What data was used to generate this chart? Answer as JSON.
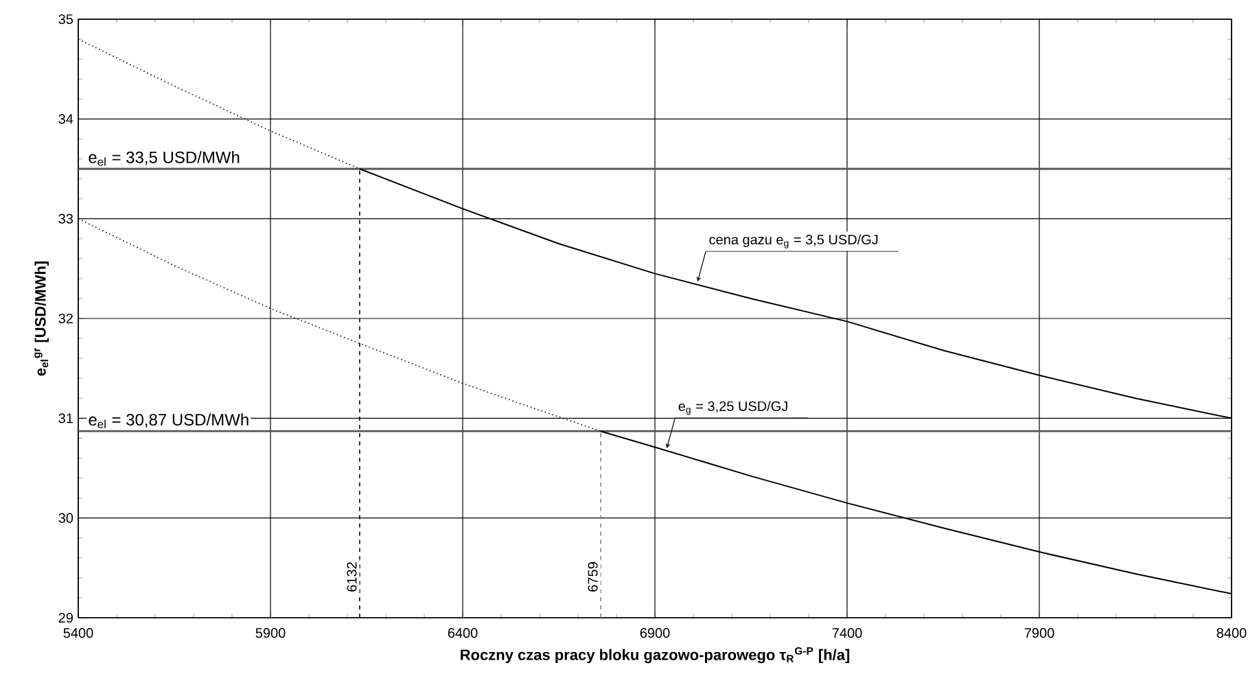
{
  "chart_data": {
    "type": "line",
    "xlabel": "Roczny czas pracy bloku gazowo-parowego τ$_{R}$$^{G-P}$  [h/a]",
    "ylabel": "e$_{el}$$^{gr}$  [USD/MWh]",
    "xlim": [
      5400,
      8400
    ],
    "ylim": [
      29,
      35
    ],
    "xticks": [
      5400,
      5900,
      6400,
      6900,
      7400,
      7900,
      8400
    ],
    "yticks": [
      29,
      30,
      31,
      32,
      33,
      34,
      35
    ],
    "grid": true,
    "marker": "none",
    "series": [
      {
        "color": "#000000",
        "line_style": "dotted",
        "x": [
          5400,
          5650,
          5900,
          6132
        ],
        "values": [
          34.8,
          34.33,
          33.88,
          33.5
        ]
      },
      {
        "color": "#000000",
        "line_style": "solid",
        "x": [
          6132,
          6400,
          6650,
          6900,
          7150,
          7400,
          7650,
          7900,
          8150,
          8400
        ],
        "values": [
          33.5,
          33.1,
          32.75,
          32.45,
          32.2,
          31.97,
          31.68,
          31.43,
          31.2,
          31.0
        ]
      },
      {
        "color": "#000000",
        "line_style": "dotted",
        "x": [
          5400,
          5650,
          5900,
          6132,
          6400,
          6600,
          6759
        ],
        "values": [
          33.0,
          32.53,
          32.1,
          31.75,
          31.35,
          31.08,
          30.87
        ]
      },
      {
        "color": "#000000",
        "line_style": "solid",
        "x": [
          6759,
          6900,
          7150,
          7400,
          7650,
          7900,
          8150,
          8400
        ],
        "values": [
          30.87,
          30.71,
          30.42,
          30.15,
          29.9,
          29.66,
          29.44,
          29.24
        ]
      },
      {
        "color": "#000000",
        "line_style": "dashed",
        "x": [
          6132,
          6132
        ],
        "values": [
          29,
          33.5
        ]
      },
      {
        "color": "#808080",
        "line_style": "dashed",
        "x": [
          6759,
          6759
        ],
        "values": [
          29,
          30.87
        ]
      }
    ],
    "ref_lines": [
      {
        "axis": "y",
        "value": 33.5,
        "label": "e$_{el}$ = 33,5 USD/MWh",
        "color": "#555555"
      },
      {
        "axis": "y",
        "value": 30.87,
        "label": "e$_{el}$ = 30,87 USD/MWh",
        "color": "#555555"
      }
    ],
    "annotations": [
      {
        "text": "cena gazu e$_{g}$ = 3,5 USD/GJ",
        "x": 7011,
        "y": 32.37
      },
      {
        "text": "e$_{g}$ = 3,25 USD/GJ",
        "x": 6931,
        "y": 30.7
      },
      {
        "text": "6132",
        "x": 6132,
        "y": 29.41
      },
      {
        "text": "6759",
        "x": 6759,
        "y": 29.41
      }
    ]
  }
}
